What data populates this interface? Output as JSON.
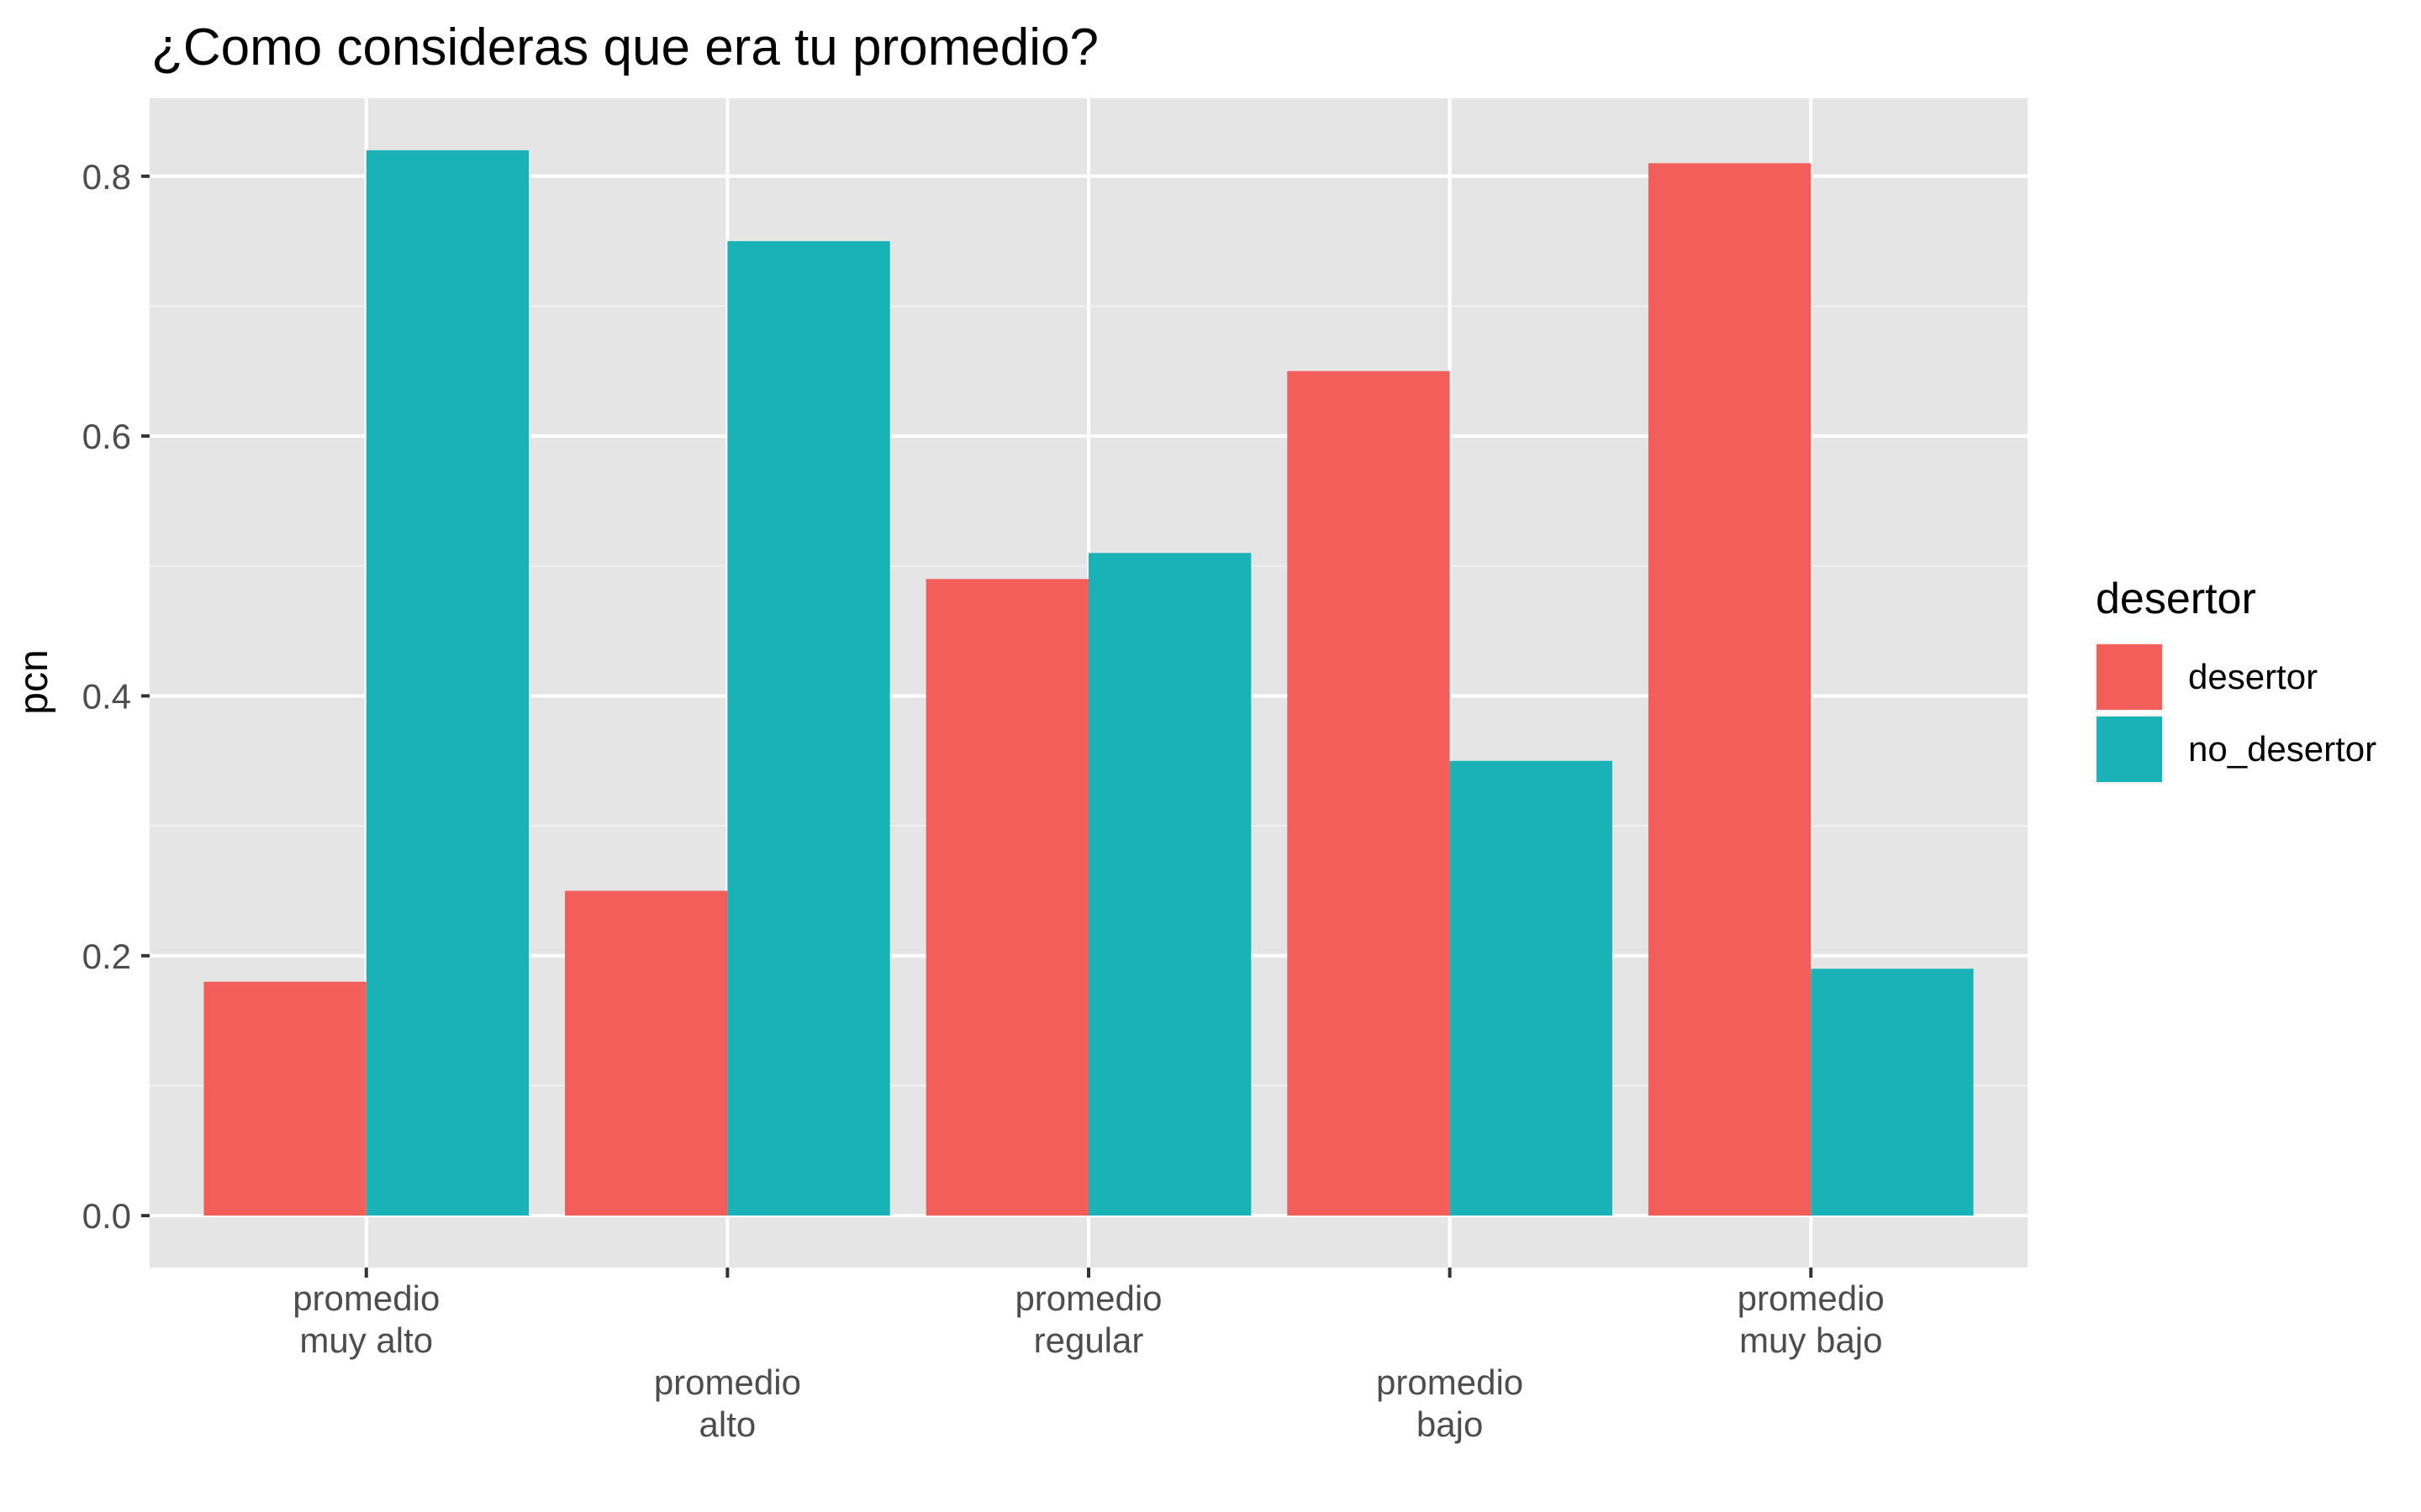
{
  "chart_data": {
    "type": "bar",
    "title": "¿Como consideras que era tu promedio?",
    "xlabel": "",
    "ylabel": "pcn",
    "ylim": [
      -0.04,
      0.86
    ],
    "yticks": [
      "0.0",
      "0.2",
      "0.4",
      "0.6",
      "0.8"
    ],
    "ytick_values": [
      0.0,
      0.2,
      0.4,
      0.6,
      0.8
    ],
    "categories": [
      [
        "promedio",
        "muy alto"
      ],
      [
        "promedio",
        "alto"
      ],
      [
        "promedio",
        "regular"
      ],
      [
        "promedio",
        "bajo"
      ],
      [
        "promedio",
        "muy bajo"
      ]
    ],
    "series": [
      {
        "name": "desertor",
        "color": "#F35E5A",
        "values": [
          0.18,
          0.25,
          0.49,
          0.65,
          0.81
        ]
      },
      {
        "name": "no_desertor",
        "color": "#19B3B7",
        "values": [
          0.82,
          0.75,
          0.51,
          0.35,
          0.19
        ]
      }
    ],
    "legend_title": "desertor",
    "legend_position": "right",
    "grid": true,
    "panel_background": "#E5E5E5"
  }
}
